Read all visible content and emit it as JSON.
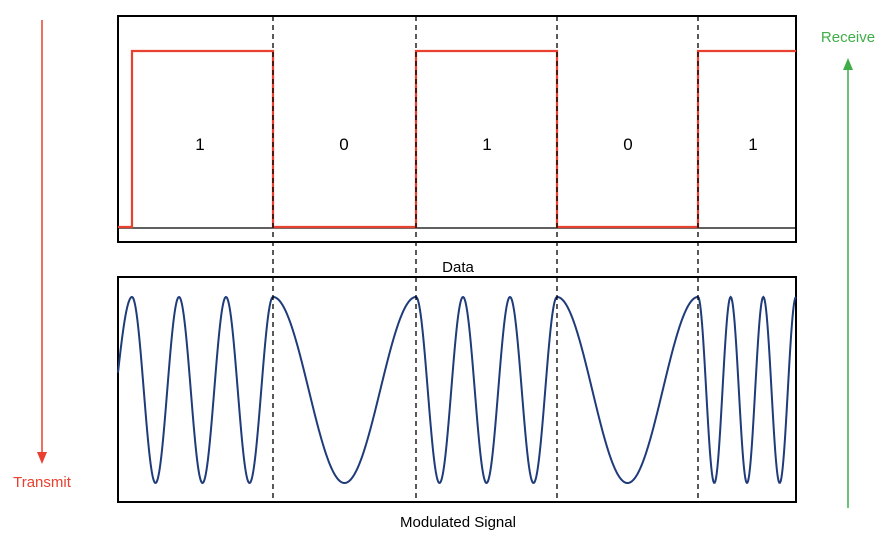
{
  "labels": {
    "transmit": "Transmit",
    "receive": "Receive",
    "data_panel": "Data",
    "signal_panel": "Modulated Signal"
  },
  "bits": [
    "1",
    "0",
    "1",
    "0",
    "1"
  ],
  "colors": {
    "data_line": "#e8412f",
    "signal_wave": "#1f3b7a",
    "transmit": "#e8412f",
    "receive": "#3fae49",
    "frame": "#000000"
  },
  "modulation": {
    "cycles_per_bit": {
      "1": 3,
      "0": 1
    }
  }
}
